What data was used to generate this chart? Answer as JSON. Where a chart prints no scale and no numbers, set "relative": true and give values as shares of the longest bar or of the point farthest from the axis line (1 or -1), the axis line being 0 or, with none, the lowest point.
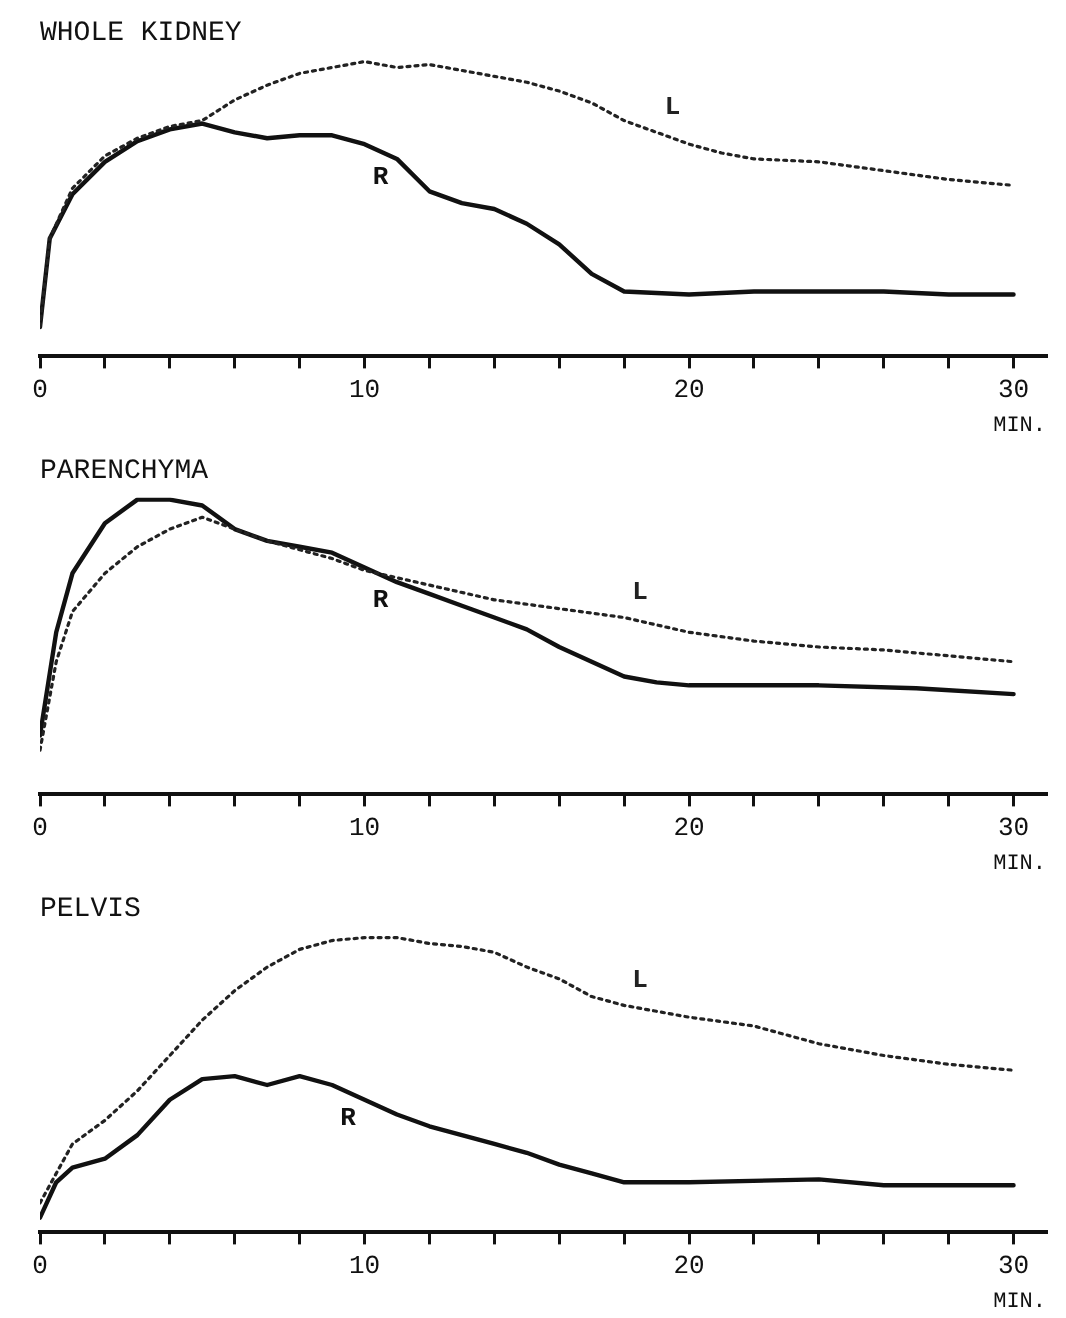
{
  "chart_data": [
    {
      "type": "line",
      "title": "WHOLE KIDNEY",
      "xlabel": "MIN.",
      "relative": true,
      "xlim": [
        0,
        31
      ],
      "xticks": [
        0,
        {
          "value": 2,
          "label": null
        },
        {
          "value": 4,
          "label": null
        },
        {
          "value": 6,
          "label": null
        },
        {
          "value": 8,
          "label": null
        },
        10,
        {
          "value": 12,
          "label": null
        },
        {
          "value": 14,
          "label": null
        },
        {
          "value": 16,
          "label": null
        },
        {
          "value": 18,
          "label": null
        },
        20,
        {
          "value": 22,
          "label": null
        },
        {
          "value": 24,
          "label": null
        },
        {
          "value": 26,
          "label": null
        },
        {
          "value": 28,
          "label": null
        },
        30
      ],
      "marker": "none",
      "grid": false,
      "legend": false,
      "x": [
        0,
        0.3,
        1,
        2,
        3,
        4,
        5,
        6,
        7,
        8,
        9,
        10,
        11,
        12,
        13,
        14,
        15,
        16,
        17,
        18,
        19,
        20,
        21,
        22,
        24,
        26,
        28,
        30
      ],
      "series": [
        {
          "name": "L",
          "color": "#222222",
          "line_style": "dotted",
          "values": [
            0.1,
            0.4,
            0.57,
            0.68,
            0.74,
            0.78,
            0.8,
            0.87,
            0.92,
            0.96,
            0.98,
            1.0,
            0.98,
            0.99,
            0.97,
            0.95,
            0.93,
            0.9,
            0.86,
            0.8,
            0.76,
            0.72,
            0.69,
            0.67,
            0.66,
            0.63,
            0.6,
            0.58
          ]
        },
        {
          "name": "R",
          "color": "#111111",
          "line_style": "solid",
          "x": [
            0,
            0.3,
            1,
            2,
            3,
            4,
            5,
            6,
            7,
            8,
            9,
            10,
            11,
            12,
            13,
            14,
            15,
            16,
            17,
            18,
            20,
            22,
            24,
            26,
            28,
            30
          ],
          "values": [
            0.1,
            0.4,
            0.55,
            0.66,
            0.73,
            0.77,
            0.79,
            0.76,
            0.74,
            0.75,
            0.75,
            0.72,
            0.67,
            0.56,
            0.52,
            0.5,
            0.45,
            0.38,
            0.28,
            0.22,
            0.21,
            0.22,
            0.22,
            0.22,
            0.21,
            0.21
          ]
        }
      ]
    },
    {
      "type": "line",
      "title": "PARENCHYMA",
      "xlabel": "MIN.",
      "relative": true,
      "xlim": [
        0,
        31
      ],
      "xticks": [
        0,
        {
          "value": 2,
          "label": null
        },
        {
          "value": 4,
          "label": null
        },
        {
          "value": 6,
          "label": null
        },
        {
          "value": 8,
          "label": null
        },
        10,
        {
          "value": 12,
          "label": null
        },
        {
          "value": 14,
          "label": null
        },
        {
          "value": 16,
          "label": null
        },
        {
          "value": 18,
          "label": null
        },
        20,
        {
          "value": 22,
          "label": null
        },
        {
          "value": 24,
          "label": null
        },
        {
          "value": 26,
          "label": null
        },
        {
          "value": 28,
          "label": null
        },
        30
      ],
      "marker": "none",
      "grid": false,
      "legend": false,
      "series": [
        {
          "name": "L",
          "color": "#222222",
          "line_style": "dotted",
          "x": [
            0,
            0.5,
            1,
            2,
            3,
            4,
            5,
            6,
            7,
            8,
            9,
            10,
            12,
            14,
            16,
            18,
            20,
            22,
            24,
            26,
            28,
            30
          ],
          "values": [
            0.15,
            0.45,
            0.62,
            0.75,
            0.84,
            0.9,
            0.94,
            0.9,
            0.86,
            0.83,
            0.8,
            0.76,
            0.71,
            0.66,
            0.63,
            0.6,
            0.55,
            0.52,
            0.5,
            0.49,
            0.47,
            0.45
          ]
        },
        {
          "name": "R",
          "color": "#111111",
          "line_style": "solid",
          "x": [
            0,
            0.5,
            1,
            2,
            3,
            4,
            5,
            6,
            7,
            8,
            9,
            10,
            11,
            12,
            13,
            14,
            15,
            16,
            17,
            18,
            19,
            20,
            24,
            27,
            30
          ],
          "values": [
            0.2,
            0.55,
            0.75,
            0.92,
            1.0,
            1.0,
            0.98,
            0.9,
            0.86,
            0.84,
            0.82,
            0.77,
            0.72,
            0.68,
            0.64,
            0.6,
            0.56,
            0.5,
            0.45,
            0.4,
            0.38,
            0.37,
            0.37,
            0.36,
            0.34
          ]
        }
      ]
    },
    {
      "type": "line",
      "title": "PELVIS",
      "xlabel": "MIN.",
      "relative": true,
      "xlim": [
        0,
        31
      ],
      "xticks": [
        0,
        {
          "value": 2,
          "label": null
        },
        {
          "value": 4,
          "label": null
        },
        {
          "value": 6,
          "label": null
        },
        {
          "value": 8,
          "label": null
        },
        10,
        {
          "value": 12,
          "label": null
        },
        {
          "value": 14,
          "label": null
        },
        {
          "value": 16,
          "label": null
        },
        {
          "value": 18,
          "label": null
        },
        20,
        {
          "value": 22,
          "label": null
        },
        {
          "value": 24,
          "label": null
        },
        {
          "value": 26,
          "label": null
        },
        {
          "value": 28,
          "label": null
        },
        30
      ],
      "marker": "none",
      "grid": false,
      "legend": false,
      "series": [
        {
          "name": "L",
          "color": "#222222",
          "line_style": "dotted",
          "x": [
            0,
            1,
            2,
            3,
            4,
            5,
            6,
            7,
            8,
            9,
            10,
            11,
            12,
            13,
            14,
            15,
            16,
            17,
            18,
            20,
            22,
            24,
            26,
            28,
            30
          ],
          "values": [
            0.1,
            0.3,
            0.38,
            0.48,
            0.6,
            0.72,
            0.82,
            0.9,
            0.96,
            0.99,
            1.0,
            1.0,
            0.98,
            0.97,
            0.95,
            0.9,
            0.86,
            0.8,
            0.77,
            0.73,
            0.7,
            0.64,
            0.6,
            0.57,
            0.55
          ]
        },
        {
          "name": "R",
          "color": "#111111",
          "line_style": "solid",
          "x": [
            0,
            0.5,
            1,
            2,
            3,
            4,
            5,
            6,
            7,
            8,
            9,
            10,
            11,
            12,
            13,
            14,
            15,
            16,
            17,
            18,
            20,
            24,
            26,
            30
          ],
          "values": [
            0.05,
            0.17,
            0.22,
            0.25,
            0.33,
            0.45,
            0.52,
            0.53,
            0.5,
            0.53,
            0.5,
            0.45,
            0.4,
            0.36,
            0.33,
            0.3,
            0.27,
            0.23,
            0.2,
            0.17,
            0.17,
            0.18,
            0.16,
            0.16
          ]
        }
      ]
    }
  ]
}
